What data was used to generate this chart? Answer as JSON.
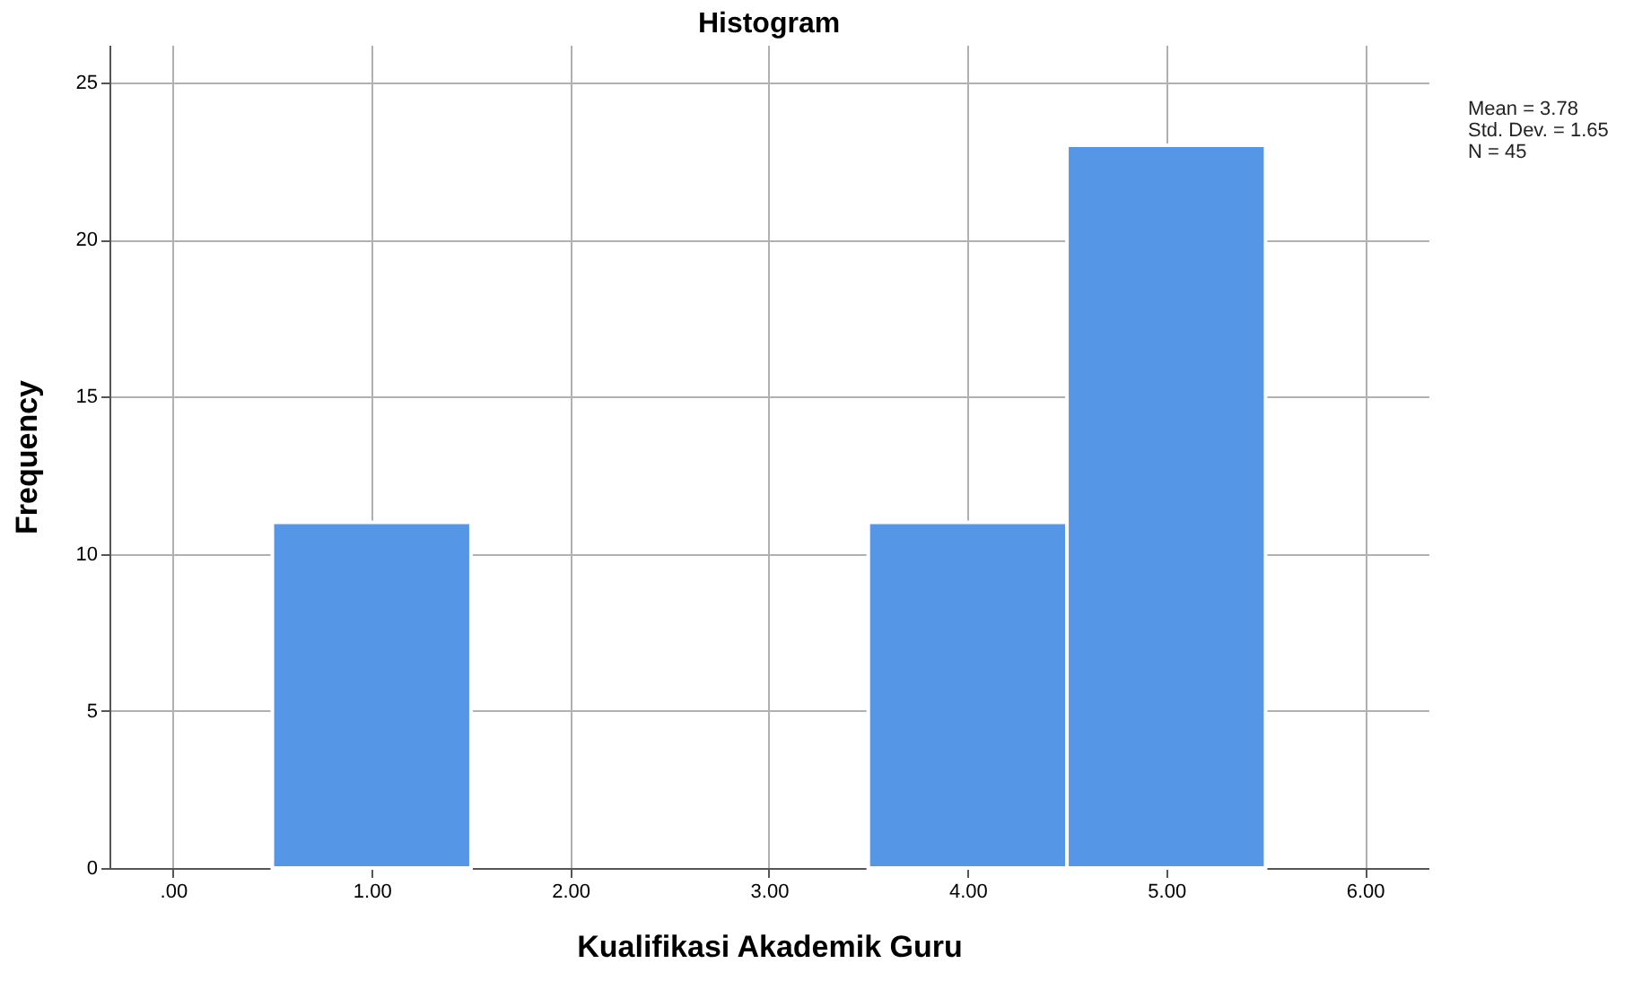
{
  "chart_data": {
    "type": "histogram",
    "title": "Histogram",
    "xlabel": "Kualifikasi Akademik Guru",
    "ylabel": "Frequency",
    "bins": [
      0.5,
      1.5,
      2.5,
      3.5,
      4.5,
      5.5
    ],
    "values": [
      11,
      0,
      0,
      11,
      23
    ],
    "color": "#5596e6",
    "xlim": [
      -0.32,
      6.32
    ],
    "xticks": [
      {
        "value": 0,
        "label": ".00"
      },
      {
        "value": 1,
        "label": "1.00"
      },
      {
        "value": 2,
        "label": "2.00"
      },
      {
        "value": 3,
        "label": "3.00"
      },
      {
        "value": 4,
        "label": "4.00"
      },
      {
        "value": 5,
        "label": "5.00"
      },
      {
        "value": 6,
        "label": "6.00"
      }
    ],
    "ylim": [
      0,
      26.2
    ],
    "yticks": [
      0,
      5,
      10,
      15,
      20,
      25
    ],
    "grid": true,
    "annotations": [
      "Mean = 3.78",
      "Std. Dev. = 1.65",
      "N = 45"
    ]
  }
}
